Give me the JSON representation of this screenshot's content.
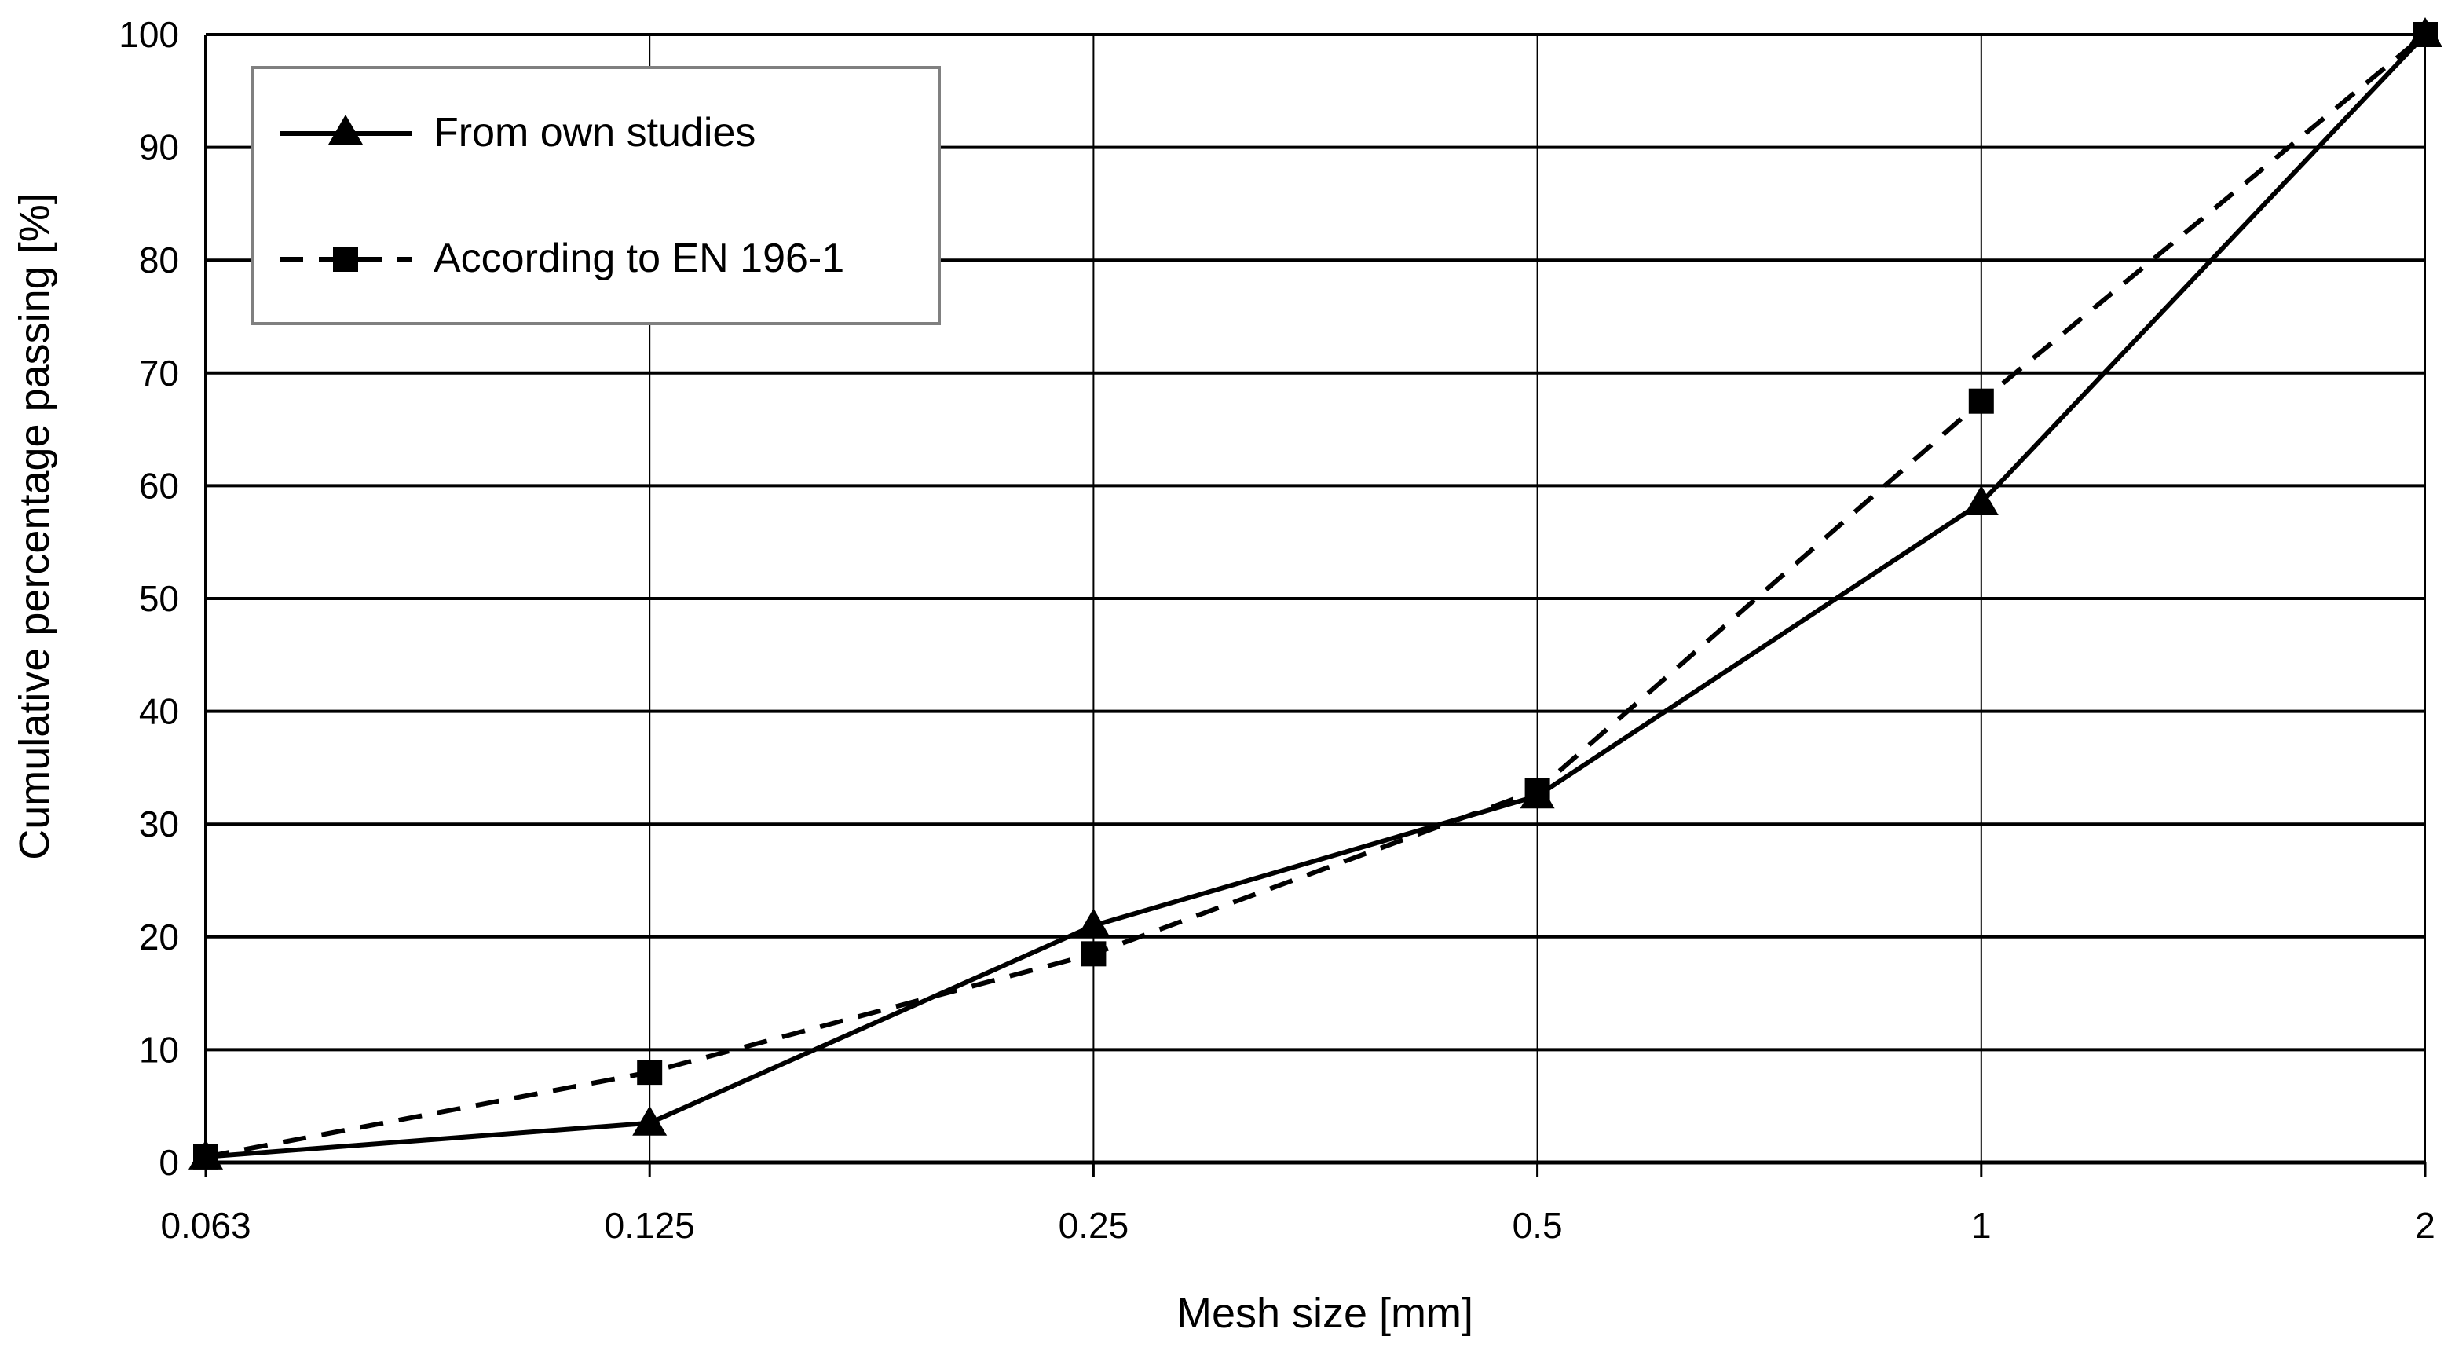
{
  "chart_data": {
    "type": "line",
    "title": "",
    "xlabel": "Mesh size [mm]",
    "ylabel": "Cumulative percentage passing [%]",
    "x_scale": "categorical (logarithmic sieve sizes)",
    "categories": [
      "0.063",
      "0.125",
      "0.25",
      "0.5",
      "1",
      "2"
    ],
    "ylim": [
      0,
      100
    ],
    "yticks": [
      "0",
      "10",
      "20",
      "30",
      "40",
      "50",
      "60",
      "70",
      "80",
      "90",
      "100"
    ],
    "grid": "on",
    "legend_position": "top-left",
    "series": [
      {
        "name": "From own studies",
        "line_style": "solid",
        "marker": "triangle",
        "values": [
          0.5,
          3.5,
          21,
          32.5,
          58.5,
          100
        ]
      },
      {
        "name": "According to EN 196-1",
        "line_style": "dashed",
        "marker": "square",
        "values": [
          0.5,
          8,
          18.5,
          33,
          67.5,
          100
        ]
      }
    ],
    "colors": {
      "line": "#000000",
      "grid": "#000000",
      "background": "#ffffff",
      "legend_border": "#808080"
    }
  }
}
